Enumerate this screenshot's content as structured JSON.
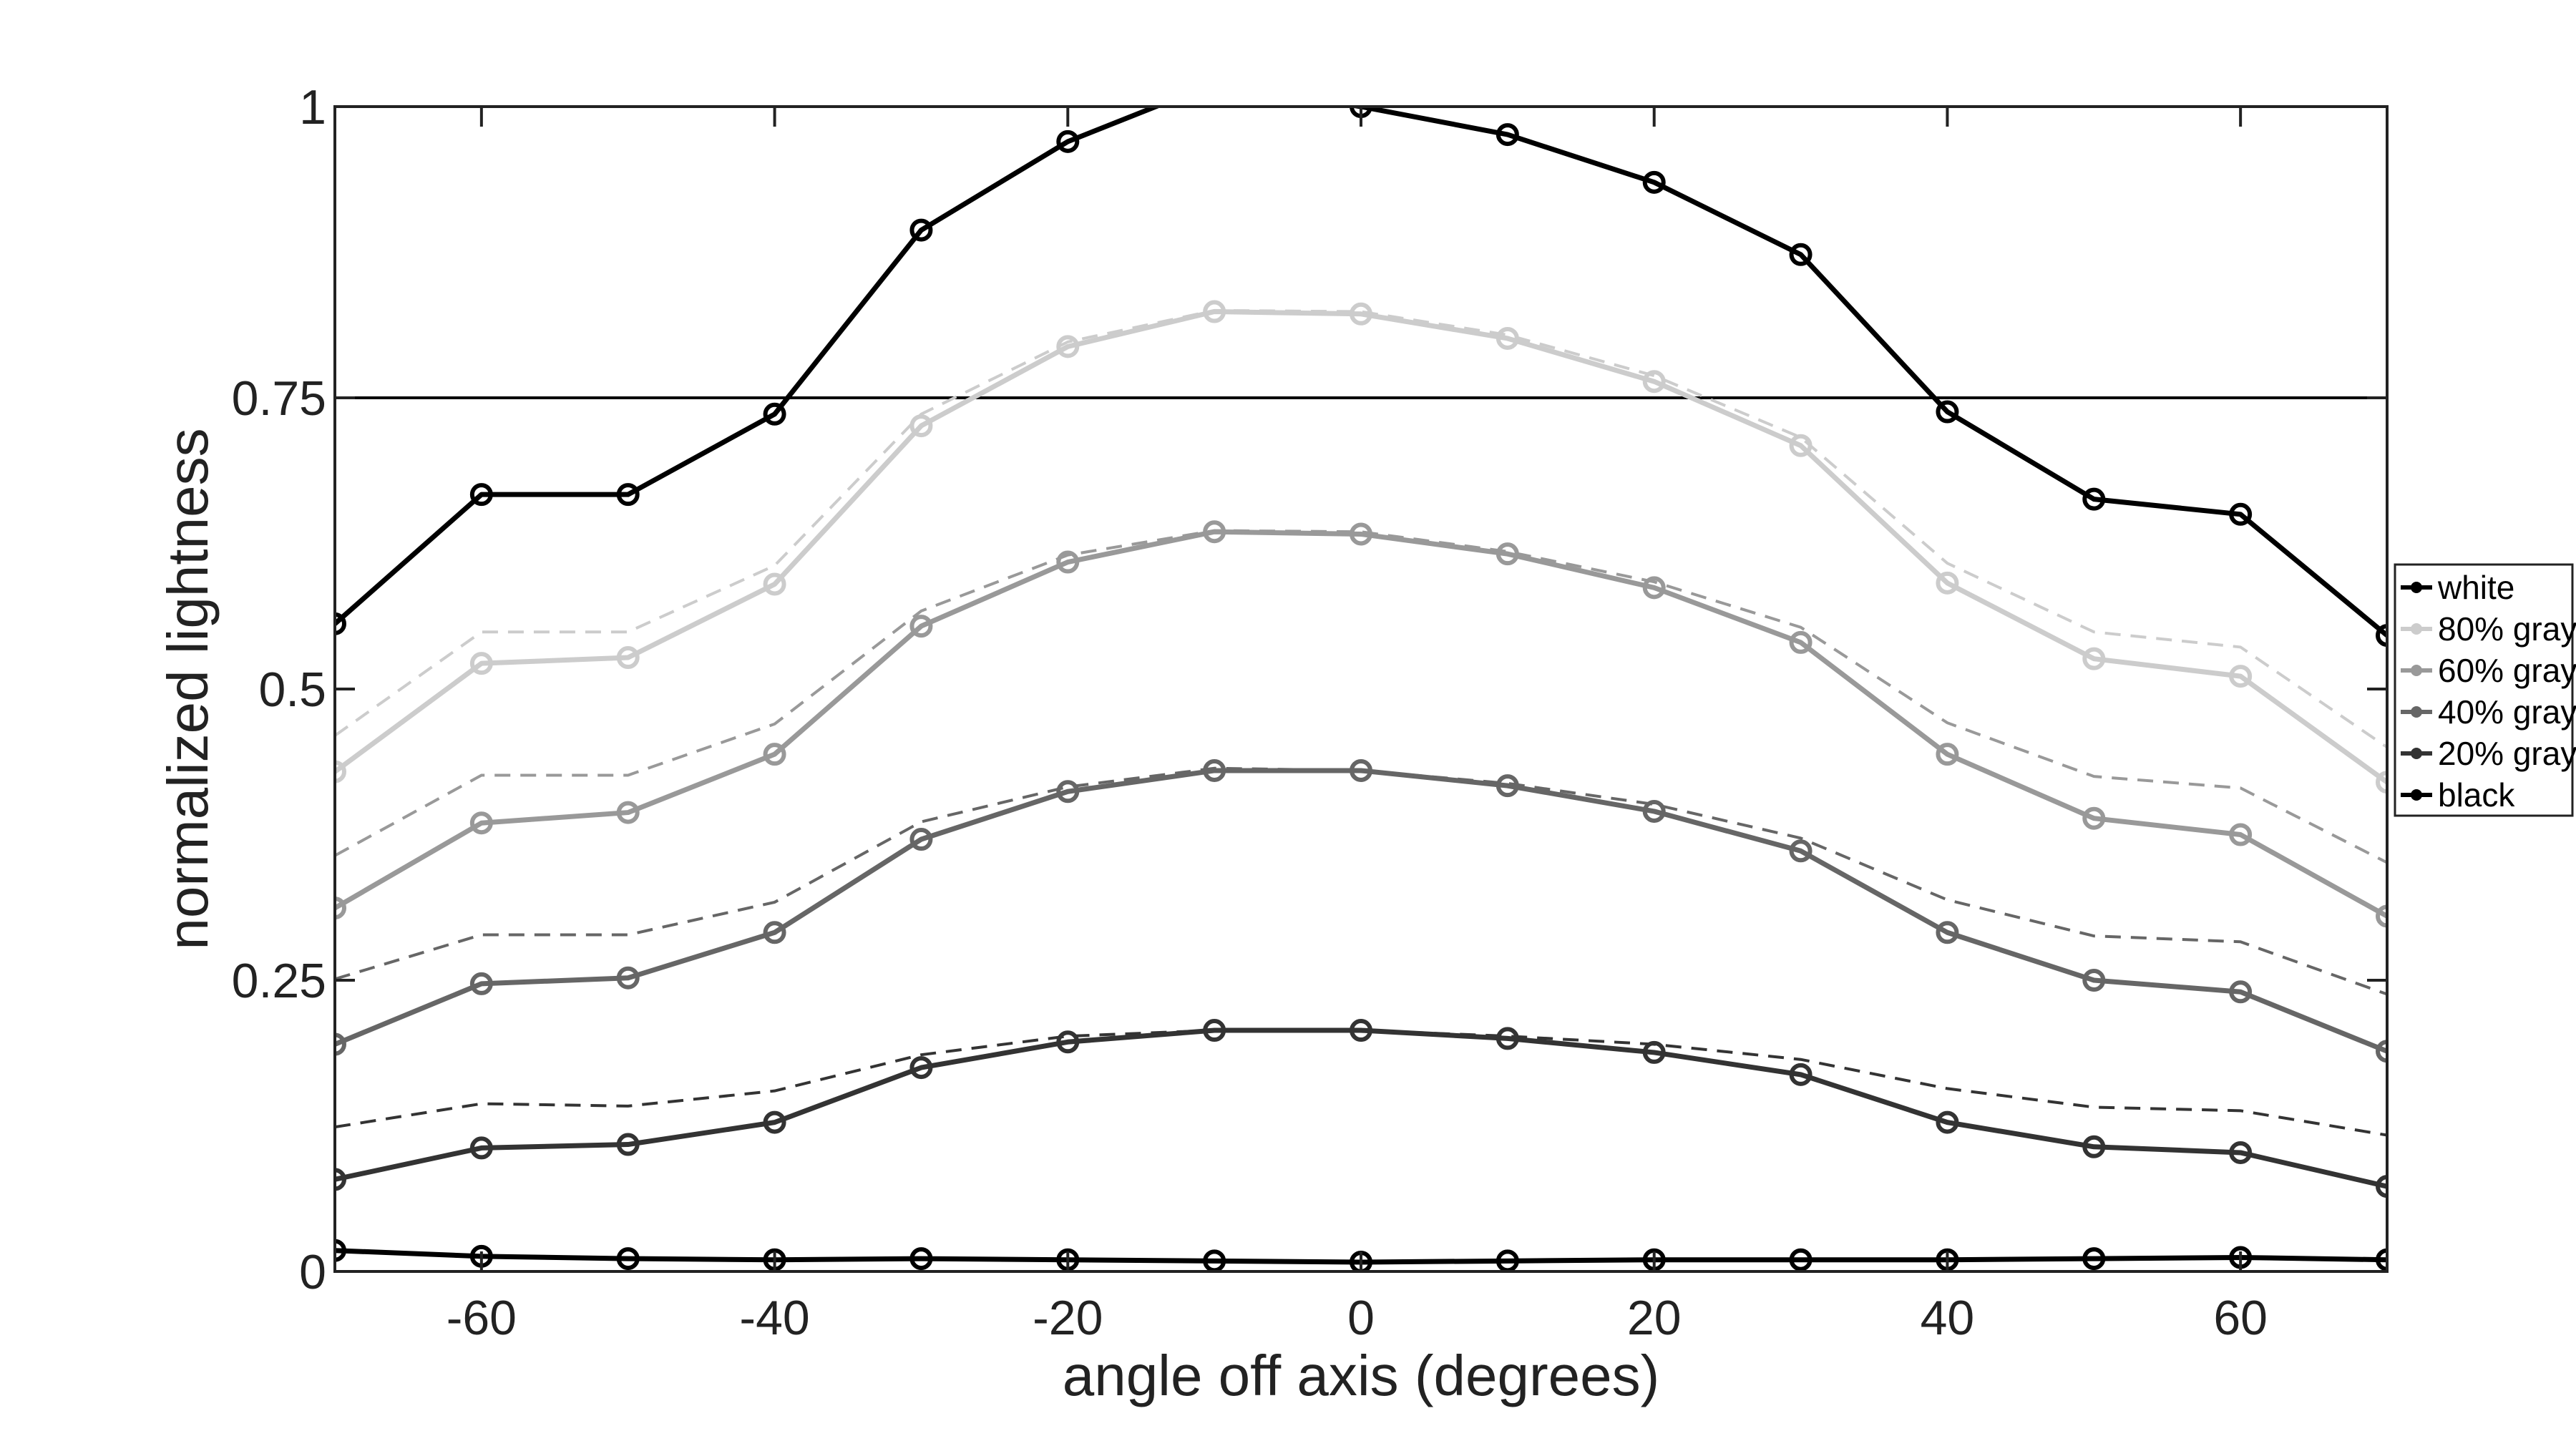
{
  "chart_data": {
    "type": "line",
    "title": "",
    "xlabel": "angle off axis (degrees)",
    "ylabel": "normalized lightness",
    "xlim": [
      -70,
      70
    ],
    "ylim": [
      0,
      1
    ],
    "xticks": [
      -60,
      -40,
      -20,
      0,
      20,
      40,
      60
    ],
    "xtick_labels": [
      "-60",
      "-40",
      "-20",
      "0",
      "20",
      "40",
      "60"
    ],
    "yticks": [
      0,
      0.25,
      0.5,
      0.75,
      1
    ],
    "ytick_labels": [
      "0",
      "0.25",
      "0.5",
      "0.75",
      "1"
    ],
    "grid": false,
    "legend_position": "right",
    "reference_line": 0.75,
    "x": [
      -70,
      -60,
      -50,
      -40,
      -30,
      -20,
      -10,
      0,
      10,
      20,
      30,
      40,
      50,
      60,
      70
    ],
    "series": [
      {
        "name": "white",
        "color": "#000000",
        "values": [
          0.556,
          0.667,
          0.667,
          0.736,
          0.894,
          0.97,
          1.02,
          1.0,
          0.976,
          0.935,
          0.873,
          0.738,
          0.663,
          0.65,
          0.546
        ]
      },
      {
        "name": "80% gray",
        "color": "#cccccc",
        "values": [
          0.429,
          0.522,
          0.527,
          0.59,
          0.726,
          0.794,
          0.824,
          0.822,
          0.801,
          0.764,
          0.709,
          0.591,
          0.526,
          0.511,
          0.42
        ],
        "reference": [
          0.46,
          0.549,
          0.549,
          0.606,
          0.736,
          0.798,
          0.825,
          0.824,
          0.804,
          0.769,
          0.716,
          0.608,
          0.549,
          0.536,
          0.45
        ]
      },
      {
        "name": "60% gray",
        "color": "#999999",
        "values": [
          0.312,
          0.385,
          0.394,
          0.444,
          0.554,
          0.609,
          0.635,
          0.633,
          0.616,
          0.587,
          0.54,
          0.444,
          0.389,
          0.375,
          0.305
        ],
        "reference": [
          0.357,
          0.426,
          0.426,
          0.47,
          0.567,
          0.615,
          0.636,
          0.635,
          0.618,
          0.592,
          0.553,
          0.471,
          0.425,
          0.415,
          0.351
        ]
      },
      {
        "name": "40% gray",
        "color": "#666666",
        "values": [
          0.195,
          0.247,
          0.252,
          0.291,
          0.371,
          0.412,
          0.43,
          0.43,
          0.417,
          0.395,
          0.361,
          0.291,
          0.25,
          0.24,
          0.189
        ],
        "reference": [
          0.251,
          0.289,
          0.289,
          0.317,
          0.386,
          0.416,
          0.432,
          0.43,
          0.419,
          0.401,
          0.372,
          0.319,
          0.288,
          0.283,
          0.238
        ]
      },
      {
        "name": "20% gray",
        "color": "#333333",
        "values": [
          0.079,
          0.106,
          0.109,
          0.128,
          0.175,
          0.197,
          0.207,
          0.207,
          0.2,
          0.188,
          0.169,
          0.128,
          0.107,
          0.102,
          0.073
        ],
        "reference": [
          0.124,
          0.144,
          0.142,
          0.155,
          0.186,
          0.202,
          0.207,
          0.207,
          0.202,
          0.195,
          0.182,
          0.157,
          0.141,
          0.138,
          0.117
        ]
      },
      {
        "name": "black",
        "color": "#000000",
        "values": [
          0.018,
          0.013,
          0.011,
          0.01,
          0.011,
          0.01,
          0.009,
          0.008,
          0.009,
          0.01,
          0.01,
          0.01,
          0.011,
          0.012,
          0.01
        ]
      }
    ]
  }
}
